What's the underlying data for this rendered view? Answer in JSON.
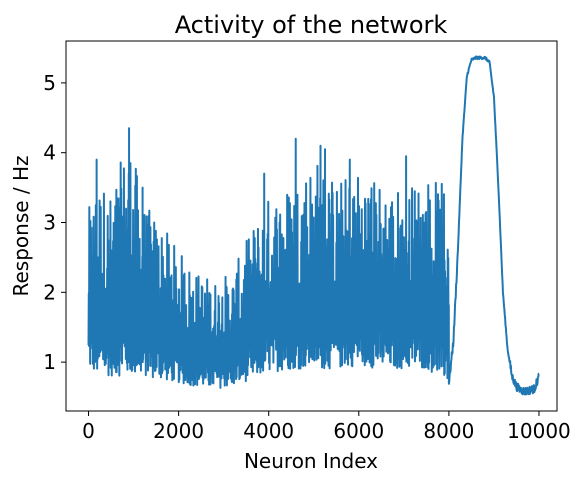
{
  "chart_data": {
    "type": "line",
    "title": "Activity of the network",
    "xlabel": "Neuron Index",
    "ylabel": "Response / Hz",
    "xlim": [
      -500,
      10400
    ],
    "ylim": [
      0.3,
      5.6
    ],
    "x_ticks": [
      0,
      2000,
      4000,
      6000,
      8000,
      10000
    ],
    "x_tick_labels": [
      "0",
      "2000",
      "4000",
      "6000",
      "8000",
      "10000"
    ],
    "y_ticks": [
      1,
      2,
      3,
      4,
      5
    ],
    "y_tick_labels": [
      "1",
      "2",
      "3",
      "4",
      "5"
    ],
    "grid": false,
    "color": "#1f77b4",
    "envelope": {
      "x": [
        0,
        200,
        500,
        900,
        1200,
        1600,
        2000,
        2400,
        2800,
        3200,
        3600,
        4000,
        4500,
        5000,
        5500,
        6000,
        6500,
        7000,
        7500,
        8000
      ],
      "upper": [
        3.2,
        3.7,
        3.4,
        4.3,
        3.3,
        3.0,
        2.6,
        2.3,
        2.2,
        2.3,
        2.9,
        3.4,
        3.6,
        4.0,
        3.6,
        3.8,
        3.6,
        3.5,
        3.7,
        3.5
      ],
      "lower": [
        0.9,
        0.8,
        0.8,
        0.8,
        0.8,
        0.75,
        0.7,
        0.65,
        0.62,
        0.65,
        0.75,
        0.85,
        0.9,
        0.9,
        0.9,
        0.95,
        0.9,
        0.9,
        0.9,
        0.7
      ]
    },
    "spikes": [
      {
        "x": 180,
        "y": 3.9
      },
      {
        "x": 900,
        "y": 4.35
      },
      {
        "x": 1200,
        "y": 3.5
      },
      {
        "x": 3900,
        "y": 3.7
      },
      {
        "x": 4600,
        "y": 4.2
      },
      {
        "x": 5150,
        "y": 4.1
      },
      {
        "x": 5250,
        "y": 4.05
      },
      {
        "x": 5800,
        "y": 3.9
      },
      {
        "x": 7050,
        "y": 3.95
      }
    ],
    "bump": {
      "x": [
        8000,
        8100,
        8200,
        8300,
        8400,
        8500,
        8600,
        8700,
        8800,
        8900,
        9000,
        9100,
        9200,
        9300,
        9400,
        9500,
        9600,
        9700,
        9800,
        9900,
        10000
      ],
      "y": [
        0.7,
        1.3,
        2.6,
        4.2,
        5.1,
        5.33,
        5.36,
        5.36,
        5.36,
        5.3,
        4.8,
        3.5,
        2.0,
        1.2,
        0.8,
        0.65,
        0.6,
        0.58,
        0.6,
        0.62,
        0.8
      ]
    }
  }
}
